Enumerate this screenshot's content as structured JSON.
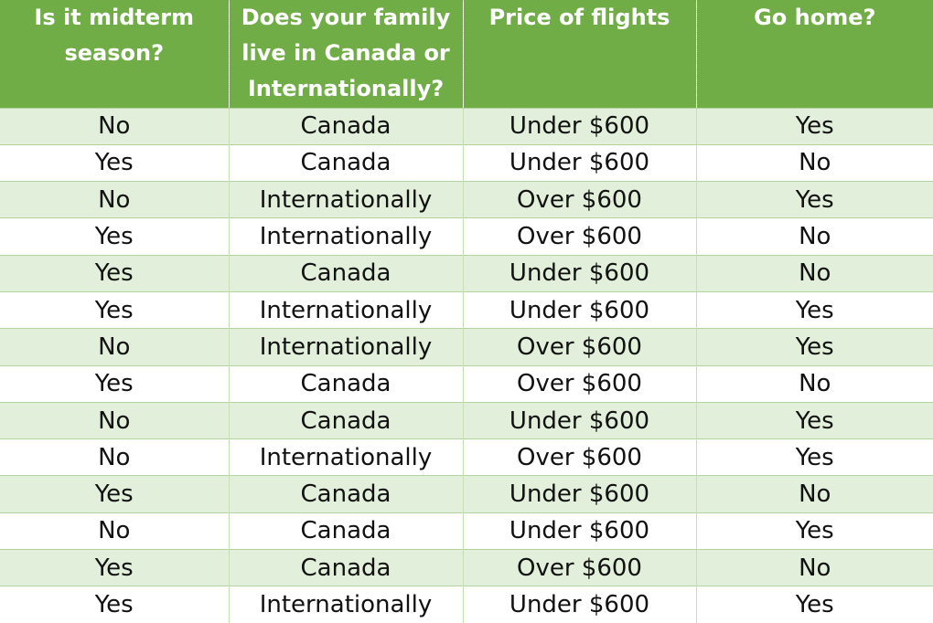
{
  "columns": [
    "Is it midterm season?",
    "Does your family live in Canada or Internationally?",
    "Price of flights",
    "Go home?"
  ],
  "rows": [
    [
      "No",
      "Canada",
      "Under $600",
      "Yes"
    ],
    [
      "Yes",
      "Canada",
      "Under $600",
      "No"
    ],
    [
      "No",
      "Internationally",
      "Over $600",
      "Yes"
    ],
    [
      "Yes",
      "Internationally",
      "Over $600",
      "No"
    ],
    [
      "Yes",
      "Canada",
      "Under $600",
      "No"
    ],
    [
      "Yes",
      "Internationally",
      "Under $600",
      "Yes"
    ],
    [
      "No",
      "Internationally",
      "Over $600",
      "Yes"
    ],
    [
      "Yes",
      "Canada",
      "Over $600",
      "No"
    ],
    [
      "No",
      "Canada",
      "Under $600",
      "Yes"
    ],
    [
      "No",
      "Internationally",
      "Over $600",
      "Yes"
    ],
    [
      "Yes",
      "Canada",
      "Under $600",
      "No"
    ],
    [
      "No",
      "Canada",
      "Under $600",
      "Yes"
    ],
    [
      "Yes",
      "Canada",
      "Over $600",
      "No"
    ],
    [
      "Yes",
      "Internationally",
      "Under $600",
      "Yes"
    ]
  ],
  "colors": {
    "header_bg": "#70ad47",
    "header_text": "#ffffff",
    "band_row_bg": "#e2efda",
    "plain_row_bg": "#ffffff"
  }
}
